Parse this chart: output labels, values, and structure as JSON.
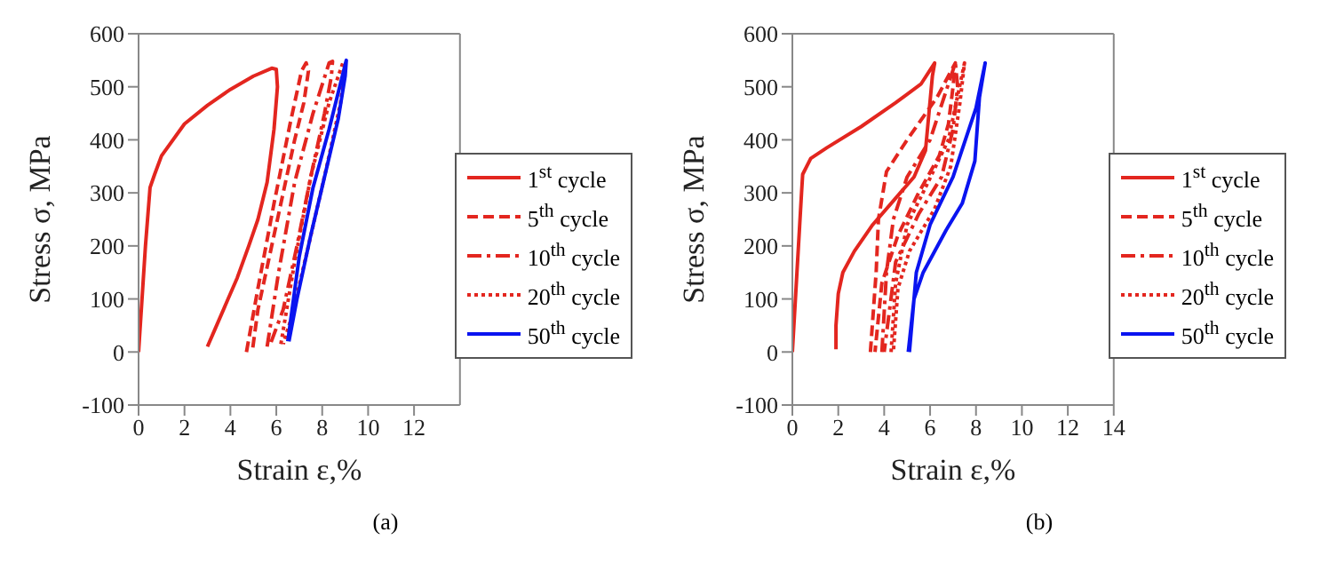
{
  "chart_data": [
    {
      "type": "line",
      "xlabel": "Strain  ε,%",
      "ylabel": "Stress  σ, MPa",
      "annotations": [
        "(a)"
      ],
      "xlim": [
        0,
        14
      ],
      "xticks": [
        0,
        2,
        4,
        6,
        8,
        10,
        12
      ],
      "ylim": [
        -100,
        600
      ],
      "yticks": [
        -100,
        0,
        100,
        200,
        300,
        400,
        500,
        600
      ],
      "legend": "right",
      "series": [
        {
          "name": "1$^{st}$ cycle",
          "color": "#e3261f",
          "line_style": "solid",
          "x": [
            0,
            0.3,
            0.5,
            0.7,
            1,
            2,
            3,
            4,
            5,
            5.8,
            6,
            6.05,
            5.9,
            5.6,
            5.2,
            4.8,
            4.3,
            3.9,
            3.3,
            3
          ],
          "values": [
            0,
            200,
            310,
            335,
            370,
            430,
            465,
            495,
            520,
            535,
            533,
            500,
            420,
            320,
            250,
            200,
            140,
            100,
            40,
            10
          ]
        },
        {
          "name": "5$^{th}$ cycle",
          "color": "#e3261f",
          "line_style": "dashed",
          "x": [
            4.7,
            5.2,
            5.9,
            6.6,
            7.1,
            7.3,
            7.4,
            7.2,
            6.8,
            6.3,
            5.7,
            5.2,
            4.95
          ],
          "values": [
            0,
            120,
            280,
            430,
            530,
            545,
            530,
            470,
            400,
            300,
            180,
            80,
            0
          ]
        },
        {
          "name": "10$^{th}$ cycle",
          "color": "#e3261f",
          "line_style": "dashdot",
          "x": [
            5.6,
            6.1,
            6.8,
            7.6,
            8.3,
            8.45,
            8.4,
            8.1,
            7.5,
            6.9,
            6.3,
            5.7
          ],
          "values": [
            10,
            150,
            320,
            450,
            545,
            548,
            520,
            450,
            330,
            200,
            80,
            10
          ]
        },
        {
          "name": "20$^{th}$ cycle",
          "color": "#e3261f",
          "line_style": "dotted",
          "x": [
            6.2,
            6.8,
            7.5,
            8.3,
            8.9,
            9,
            8.8,
            8.2,
            7.4,
            6.7,
            6.3
          ],
          "values": [
            15,
            170,
            330,
            470,
            545,
            540,
            470,
            350,
            200,
            70,
            15
          ]
        },
        {
          "name": "50$^{th}$ cycle",
          "color": "#0a14f0",
          "line_style": "solid",
          "x": [
            6.5,
            7,
            7.6,
            8.3,
            9.05,
            9,
            8.7,
            8.1,
            7.5,
            6.9,
            6.55
          ],
          "values": [
            20,
            180,
            310,
            420,
            550,
            520,
            440,
            330,
            220,
            100,
            20
          ]
        }
      ]
    },
    {
      "type": "line",
      "xlabel": "Strain  ε,%",
      "ylabel": "Stress  σ, MPa",
      "annotations": [
        "(b)"
      ],
      "xlim": [
        0,
        14
      ],
      "xticks": [
        0,
        2,
        4,
        6,
        8,
        10,
        12,
        14
      ],
      "ylim": [
        -100,
        600
      ],
      "yticks": [
        -100,
        0,
        100,
        200,
        300,
        400,
        500,
        600
      ],
      "legend": "right",
      "series": [
        {
          "name": "1$^{st}$ cycle",
          "color": "#e3261f",
          "line_style": "solid",
          "x": [
            0,
            0.2,
            0.4,
            0.45,
            0.8,
            1.5,
            3,
            4.5,
            5.6,
            6.2,
            6.1,
            5.95,
            5.8,
            5.3,
            4.5,
            3.5,
            2.7,
            2.2,
            2,
            1.9,
            1.9
          ],
          "values": [
            0,
            150,
            300,
            335,
            365,
            385,
            425,
            470,
            505,
            545,
            520,
            450,
            380,
            330,
            290,
            240,
            190,
            150,
            110,
            50,
            5
          ]
        },
        {
          "name": "5$^{th}$ cycle",
          "color": "#e3261f",
          "line_style": "dashed",
          "x": [
            3.4,
            3.65,
            3.75,
            4.1,
            5,
            6.3,
            7.1,
            7,
            6.8,
            6.4,
            5.5,
            4.6,
            3.9,
            3.6
          ],
          "values": [
            0,
            150,
            250,
            340,
            400,
            480,
            545,
            500,
            430,
            370,
            300,
            220,
            130,
            0
          ]
        },
        {
          "name": "10$^{th}$ cycle",
          "color": "#e3261f",
          "line_style": "dashdot",
          "x": [
            3.9,
            4.1,
            4.4,
            5,
            6,
            7.1,
            7.2,
            7,
            6.5,
            5.5,
            4.5,
            4
          ],
          "values": [
            0,
            150,
            250,
            330,
            400,
            545,
            500,
            420,
            330,
            260,
            170,
            0
          ]
        },
        {
          "name": "20$^{th}$ cycle",
          "color": "#e3261f",
          "line_style": "dotted",
          "x": [
            4.3,
            4.5,
            5,
            5.8,
            6.8,
            7.5,
            7.3,
            6.9,
            6.2,
            5.1,
            4.6,
            4.4
          ],
          "values": [
            0,
            130,
            240,
            310,
            400,
            545,
            470,
            350,
            270,
            190,
            120,
            0
          ]
        },
        {
          "name": "50$^{th}$ cycle",
          "color": "#0a14f0",
          "line_style": "solid",
          "x": [
            5.05,
            5.3,
            5.4,
            6,
            7,
            8,
            8.4,
            8.15,
            7.95,
            7.4,
            6.7,
            5.7,
            5.3,
            5.1
          ],
          "values": [
            0,
            100,
            150,
            240,
            330,
            460,
            545,
            480,
            360,
            280,
            230,
            150,
            100,
            0
          ]
        }
      ]
    }
  ]
}
